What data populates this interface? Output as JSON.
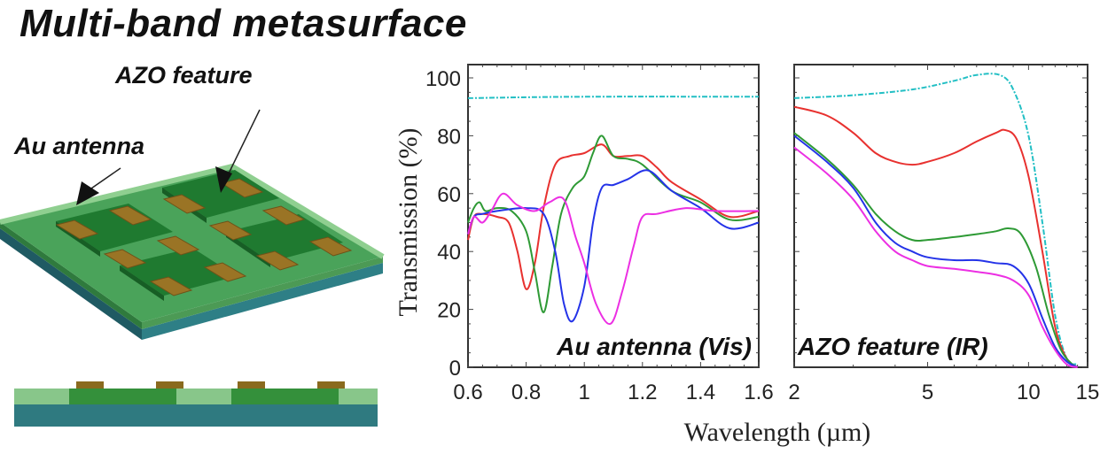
{
  "title": "Multi-band metasurface",
  "schematic": {
    "labels": {
      "azo": "AZO feature",
      "au": "Au antenna"
    },
    "colors": {
      "substrate": "#2f7d80",
      "film_light": "#86c48a",
      "film": "#3b9a4a",
      "feature": "#237a34",
      "gold": "#8a6a1e"
    }
  },
  "chart_data": [
    {
      "type": "line",
      "title": "",
      "annotation": "Au antenna (Vis)",
      "xlabel": "Wavelength (µm)",
      "ylabel": "Transmission (%)",
      "xlim": [
        0.6,
        1.6
      ],
      "ylim": [
        0,
        100
      ],
      "xticks": [
        "0.6",
        "0.8",
        "1",
        "1.2",
        "1.4",
        "1.6"
      ],
      "xtick_values": [
        0.6,
        0.8,
        1.0,
        1.2,
        1.4,
        1.6
      ],
      "yticks": [
        "0",
        "20",
        "40",
        "60",
        "80",
        "100"
      ],
      "ytick_values": [
        0,
        20,
        40,
        60,
        80,
        100
      ],
      "grid": false,
      "series": [
        {
          "name": "cyan",
          "color": "#22bfc4",
          "dashed": true,
          "x": [
            0.6,
            1.0,
            1.6
          ],
          "y": [
            93,
            93.5,
            93.5
          ]
        },
        {
          "name": "red",
          "color": "#e8312f",
          "x": [
            0.6,
            0.62,
            0.65,
            0.7,
            0.74,
            0.77,
            0.8,
            0.83,
            0.86,
            0.9,
            0.95,
            1.0,
            1.06,
            1.1,
            1.15,
            1.2,
            1.25,
            1.3,
            1.4,
            1.5,
            1.6
          ],
          "y": [
            44,
            52,
            53,
            52,
            50,
            40,
            27,
            36,
            55,
            70,
            73,
            74,
            77,
            73,
            73,
            73,
            69,
            64,
            58,
            52,
            54
          ]
        },
        {
          "name": "green",
          "color": "#2e9a35",
          "x": [
            0.6,
            0.62,
            0.64,
            0.66,
            0.7,
            0.75,
            0.8,
            0.83,
            0.86,
            0.89,
            0.92,
            0.96,
            1.0,
            1.03,
            1.06,
            1.1,
            1.15,
            1.2,
            1.3,
            1.4,
            1.5,
            1.6
          ],
          "y": [
            50,
            55,
            57,
            54,
            55,
            54,
            47,
            33,
            19,
            35,
            53,
            62,
            66,
            74,
            80,
            73,
            72,
            70,
            61,
            57,
            51,
            52
          ]
        },
        {
          "name": "blue",
          "color": "#2433e8",
          "x": [
            0.6,
            0.62,
            0.65,
            0.7,
            0.8,
            0.86,
            0.9,
            0.93,
            0.96,
            1.0,
            1.03,
            1.06,
            1.1,
            1.15,
            1.22,
            1.3,
            1.4,
            1.5,
            1.6
          ],
          "y": [
            46,
            52,
            53,
            54,
            55,
            53,
            40,
            22,
            16,
            28,
            50,
            62,
            63,
            65,
            68,
            61,
            55,
            48,
            50
          ]
        },
        {
          "name": "magenta",
          "color": "#ec2fe3",
          "x": [
            0.6,
            0.62,
            0.65,
            0.68,
            0.72,
            0.77,
            0.83,
            0.88,
            0.93,
            0.97,
            1.0,
            1.04,
            1.09,
            1.13,
            1.17,
            1.2,
            1.25,
            1.35,
            1.45,
            1.6
          ],
          "y": [
            46,
            52,
            50,
            54,
            60,
            56,
            54,
            57,
            58,
            45,
            36,
            22,
            15,
            26,
            42,
            52,
            53,
            55,
            54,
            54
          ]
        }
      ]
    },
    {
      "type": "line",
      "title": "",
      "annotation": "AZO feature (IR)",
      "xlabel": "Wavelength (µm)",
      "ylabel": "Transmission (%)",
      "xscale": "log",
      "xlim": [
        2,
        15
      ],
      "ylim": [
        0,
        100
      ],
      "xticks": [
        "2",
        "5",
        "10",
        "15"
      ],
      "xtick_values": [
        2,
        5,
        10,
        15
      ],
      "grid": false,
      "series": [
        {
          "name": "cyan",
          "color": "#22bfc4",
          "dashed": true,
          "x": [
            2,
            3,
            4.5,
            6,
            7,
            8.2,
            9,
            10,
            11,
            12,
            13,
            14
          ],
          "y": [
            93,
            94,
            96,
            99,
            101,
            101,
            96,
            80,
            50,
            18,
            3,
            1
          ]
        },
        {
          "name": "red",
          "color": "#e8312f",
          "x": [
            2,
            2.5,
            3,
            3.5,
            4,
            4.5,
            5,
            6,
            7,
            8,
            8.5,
            9.2,
            10,
            11,
            12,
            13,
            14
          ],
          "y": [
            90,
            87,
            81,
            74,
            71,
            70,
            71,
            74,
            78,
            81,
            82,
            79,
            66,
            40,
            14,
            3,
            0
          ]
        },
        {
          "name": "green",
          "color": "#2e9a35",
          "x": [
            2,
            2.5,
            3,
            3.5,
            4,
            4.5,
            5,
            6,
            7,
            8,
            8.7,
            9.5,
            10.5,
            11.5,
            12.5,
            13.5,
            14
          ],
          "y": [
            81,
            72,
            63,
            53,
            47,
            44,
            44,
            45,
            46,
            47,
            48,
            46,
            35,
            18,
            6,
            1,
            0
          ]
        },
        {
          "name": "blue",
          "color": "#2433e8",
          "x": [
            2,
            2.5,
            3,
            3.5,
            4,
            4.5,
            5,
            6,
            7,
            8,
            9,
            10,
            11,
            12,
            13,
            14
          ],
          "y": [
            80,
            71,
            62,
            50,
            43,
            40,
            38,
            37,
            37,
            36,
            35,
            29,
            17,
            7,
            2,
            0
          ]
        },
        {
          "name": "magenta",
          "color": "#ec2fe3",
          "x": [
            2,
            2.5,
            3,
            3.5,
            4,
            4.5,
            5,
            6,
            7,
            8,
            9,
            10,
            11,
            12,
            13,
            14
          ],
          "y": [
            76,
            67,
            58,
            47,
            40,
            37,
            35,
            34,
            33,
            32,
            30,
            25,
            14,
            6,
            1,
            0
          ]
        }
      ]
    }
  ]
}
